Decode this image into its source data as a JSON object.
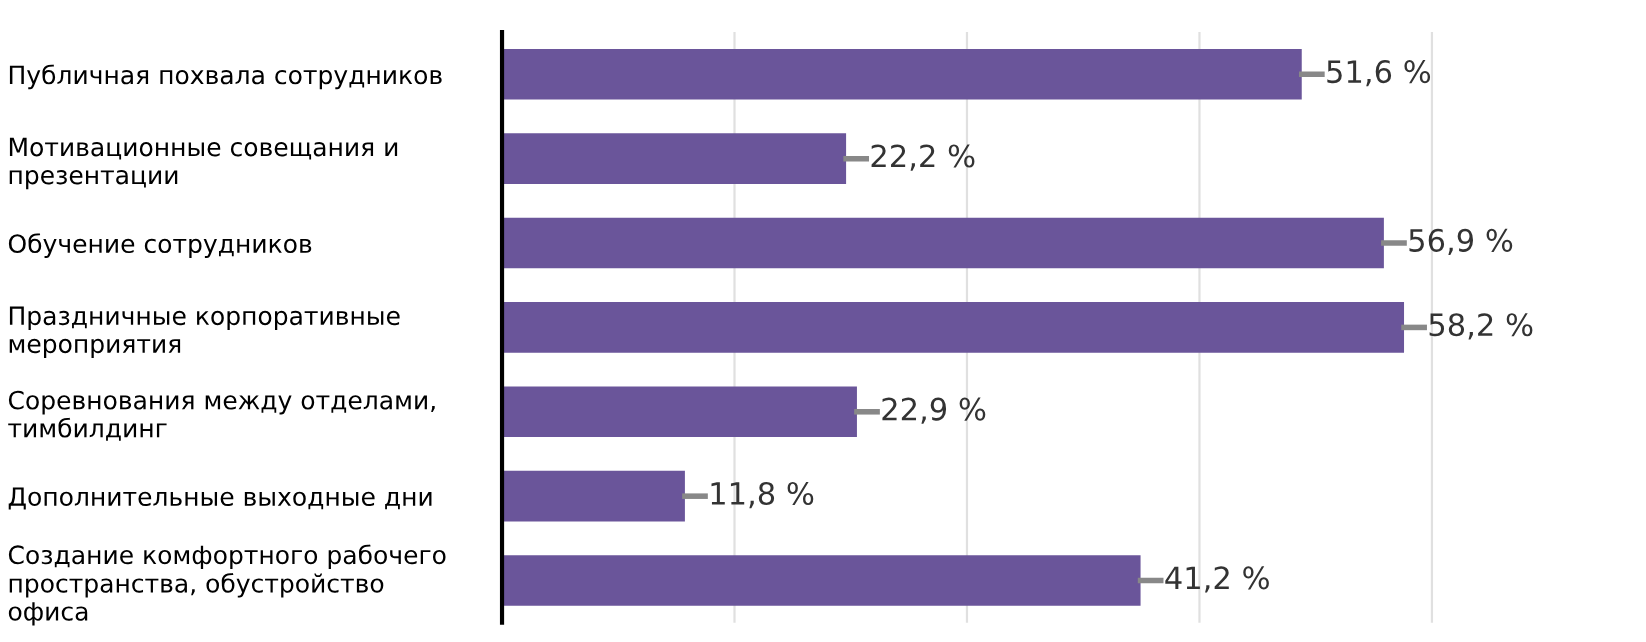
{
  "chart_data": {
    "type": "bar",
    "orientation": "horizontal",
    "categories": [
      "Публичная похвала сотрудников",
      "Мотивационные совещания и\nпрезентации",
      "Обучение сотрудников",
      "Праздничные корпоративные\nмероприятия",
      "Соревнования между отделами,\nтимбилдинг",
      "Дополнительные выходные дни",
      "Создание комфортного рабочего\nпространства, обустройство\nофиса"
    ],
    "values": [
      51.6,
      22.2,
      56.9,
      58.2,
      22.9,
      11.8,
      41.2
    ],
    "value_labels": [
      "51,6 %",
      "22,2 %",
      "56,9 %",
      "58,2 %",
      "22,9 %",
      "11,8 %",
      "41,2 %"
    ],
    "color": "#6a559a",
    "grid": "x"
  }
}
